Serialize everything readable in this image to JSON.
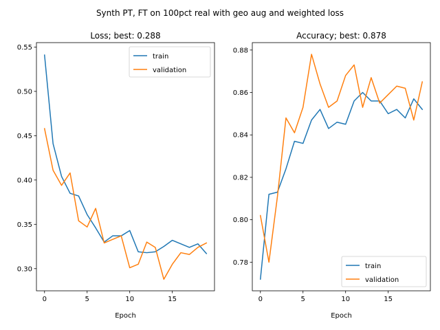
{
  "suptitle": "Synth PT, FT on 100pct real with geo aug and weighted loss",
  "colors": {
    "train": "#1f77b4",
    "validation": "#ff7f0e"
  },
  "chart_data": [
    {
      "type": "line",
      "title": "Loss; best: 0.288",
      "xlabel": "Epoch",
      "ylabel": "",
      "xlim": [
        -0.95,
        19.95
      ],
      "ylim": [
        0.275,
        0.555
      ],
      "xticks": [
        0,
        5,
        10,
        15
      ],
      "yticks": [
        0.3,
        0.35,
        0.4,
        0.45,
        0.5,
        0.55
      ],
      "ytick_labels": [
        "0.30",
        "0.35",
        "0.40",
        "0.45",
        "0.50",
        "0.55"
      ],
      "legend_loc": "upper right",
      "x": [
        0,
        1,
        2,
        3,
        4,
        5,
        6,
        7,
        8,
        9,
        10,
        11,
        12,
        13,
        14,
        15,
        16,
        17,
        18,
        19
      ],
      "series": [
        {
          "name": "train",
          "color": "#1f77b4",
          "values": [
            0.541,
            0.441,
            0.404,
            0.385,
            0.382,
            0.361,
            0.346,
            0.33,
            0.337,
            0.337,
            0.343,
            0.319,
            0.318,
            0.319,
            0.325,
            0.332,
            0.328,
            0.324,
            0.328,
            0.317
          ]
        },
        {
          "name": "validation",
          "color": "#ff7f0e",
          "values": [
            0.458,
            0.411,
            0.394,
            0.408,
            0.354,
            0.347,
            0.368,
            0.329,
            0.333,
            0.337,
            0.301,
            0.305,
            0.33,
            0.324,
            0.288,
            0.305,
            0.318,
            0.316,
            0.324,
            0.329
          ]
        }
      ]
    },
    {
      "type": "line",
      "title": "Accuracy; best: 0.878",
      "xlabel": "Epoch",
      "ylabel": "",
      "xlim": [
        -0.95,
        19.95
      ],
      "ylim": [
        0.7665,
        0.8835
      ],
      "xticks": [
        0,
        5,
        10,
        15
      ],
      "yticks": [
        0.78,
        0.8,
        0.82,
        0.84,
        0.86,
        0.88
      ],
      "ytick_labels": [
        "0.78",
        "0.80",
        "0.82",
        "0.84",
        "0.86",
        "0.88"
      ],
      "legend_loc": "lower right",
      "x": [
        0,
        1,
        2,
        3,
        4,
        5,
        6,
        7,
        8,
        9,
        10,
        11,
        12,
        13,
        14,
        15,
        16,
        17,
        18,
        19
      ],
      "series": [
        {
          "name": "train",
          "color": "#1f77b4",
          "values": [
            0.772,
            0.812,
            0.813,
            0.824,
            0.837,
            0.836,
            0.847,
            0.852,
            0.843,
            0.846,
            0.845,
            0.856,
            0.86,
            0.856,
            0.856,
            0.85,
            0.852,
            0.848,
            0.857,
            0.852
          ]
        },
        {
          "name": "validation",
          "color": "#ff7f0e",
          "values": [
            0.802,
            0.78,
            0.811,
            0.848,
            0.841,
            0.853,
            0.878,
            0.864,
            0.853,
            0.856,
            0.868,
            0.873,
            0.853,
            0.867,
            0.855,
            0.859,
            0.863,
            0.862,
            0.847,
            0.865
          ]
        }
      ]
    }
  ]
}
